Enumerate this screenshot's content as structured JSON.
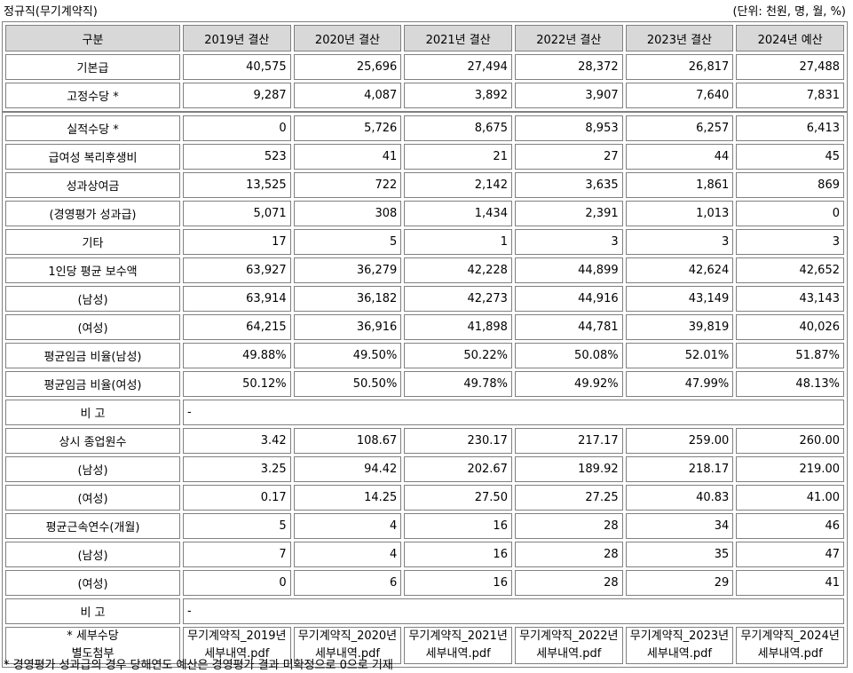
{
  "title": "정규직(무기계약직)",
  "unit_note": "(단위: 천원, 명, 월, %)",
  "header": [
    "구분",
    "2019년 결산",
    "2020년 결산",
    "2021년 결산",
    "2022년 결산",
    "2023년 결산",
    "2024년 예산"
  ],
  "rows_top": [
    {
      "label": "기본급",
      "values": [
        "40,575",
        "25,696",
        "27,494",
        "28,372",
        "26,817",
        "27,488"
      ]
    },
    {
      "label": "고정수당 *",
      "values": [
        "9,287",
        "4,087",
        "3,892",
        "3,907",
        "7,640",
        "7,831"
      ]
    }
  ],
  "rows_a": [
    {
      "label": "실적수당 *",
      "values": [
        "0",
        "5,726",
        "8,675",
        "8,953",
        "6,257",
        "6,413"
      ]
    },
    {
      "label": "급여성 복리후생비",
      "values": [
        "523",
        "41",
        "21",
        "27",
        "44",
        "45"
      ]
    },
    {
      "label": "성과상여금",
      "values": [
        "13,525",
        "722",
        "2,142",
        "3,635",
        "1,861",
        "869"
      ]
    },
    {
      "label": "(경영평가 성과급)",
      "values": [
        "5,071",
        "308",
        "1,434",
        "2,391",
        "1,013",
        "0"
      ]
    },
    {
      "label": "기타",
      "values": [
        "17",
        "5",
        "1",
        "3",
        "3",
        "3"
      ]
    },
    {
      "label": "1인당 평균 보수액",
      "values": [
        "63,927",
        "36,279",
        "42,228",
        "44,899",
        "42,624",
        "42,652"
      ]
    },
    {
      "label": "(남성)",
      "values": [
        "63,914",
        "36,182",
        "42,273",
        "44,916",
        "43,149",
        "43,143"
      ]
    },
    {
      "label": "(여성)",
      "values": [
        "64,215",
        "36,916",
        "41,898",
        "44,781",
        "39,819",
        "40,026"
      ]
    },
    {
      "label": "평균임금 비율(남성)",
      "values": [
        "49.88%",
        "49.50%",
        "50.22%",
        "50.08%",
        "52.01%",
        "51.87%"
      ]
    },
    {
      "label": "평균임금 비율(여성)",
      "values": [
        "50.12%",
        "50.50%",
        "49.78%",
        "49.92%",
        "47.99%",
        "48.13%"
      ]
    }
  ],
  "remark1": {
    "label": "비 고",
    "value": "-"
  },
  "rows_b": [
    {
      "label": "상시 종업원수",
      "values": [
        "3.42",
        "108.67",
        "230.17",
        "217.17",
        "259.00",
        "260.00"
      ]
    },
    {
      "label": "(남성)",
      "values": [
        "3.25",
        "94.42",
        "202.67",
        "189.92",
        "218.17",
        "219.00"
      ]
    },
    {
      "label": "(여성)",
      "values": [
        "0.17",
        "14.25",
        "27.50",
        "27.25",
        "40.83",
        "41.00"
      ]
    },
    {
      "label": "평균근속연수(개월)",
      "values": [
        "5",
        "4",
        "16",
        "28",
        "34",
        "46"
      ]
    },
    {
      "label": "(남성)",
      "values": [
        "7",
        "4",
        "16",
        "28",
        "35",
        "47"
      ]
    },
    {
      "label": "(여성)",
      "values": [
        "0",
        "6",
        "16",
        "28",
        "29",
        "41"
      ]
    }
  ],
  "remark2": {
    "label": "비 고",
    "value": "-"
  },
  "attach": {
    "label1": "* 세부수당",
    "label2": "별도첨부",
    "files": [
      {
        "l1": "무기계약직_2019년",
        "l2": "세부내역.pdf"
      },
      {
        "l1": "무기계약직_2020년",
        "l2": "세부내역.pdf"
      },
      {
        "l1": "무기계약직_2021년",
        "l2": "세부내역.pdf"
      },
      {
        "l1": "무기계약직_2022년",
        "l2": "세부내역.pdf"
      },
      {
        "l1": "무기계약직_2023년",
        "l2": "세부내역.pdf"
      },
      {
        "l1": "무기계약직_2024년",
        "l2": "세부내역.pdf"
      }
    ]
  },
  "footnote": "* 경영평가 성과급의 경우 당해연도 예산은 경영평가 결과 미확정으로 0으로 기재"
}
